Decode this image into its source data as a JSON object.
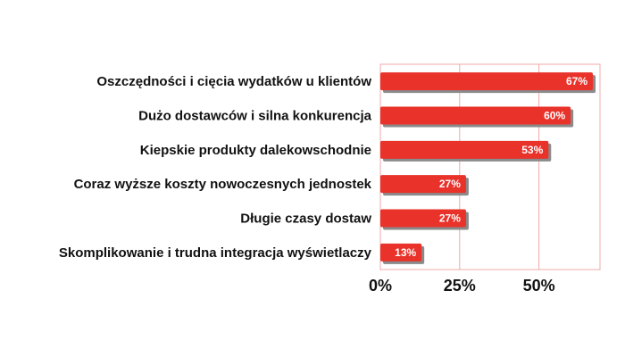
{
  "chart_data": {
    "type": "bar",
    "orientation": "horizontal",
    "categories": [
      "Oszczędności i cięcia wydatków u klientów",
      "Dużo dostawców i silna konkurencja",
      "Kiepskie produkty dalekowschodnie",
      "Coraz wyższe koszty nowoczesnych jednostek",
      "Długie czasy dostaw",
      "Skomplikowanie i trudna integracja wyświetlaczy"
    ],
    "values": [
      67,
      60,
      53,
      27,
      27,
      13
    ],
    "value_labels": [
      "67%",
      "60%",
      "53%",
      "27%",
      "27%",
      "13%"
    ],
    "xticks": [
      0,
      25,
      50
    ],
    "xtick_labels": [
      "0%",
      "25%",
      "50%"
    ],
    "xlim": [
      0,
      67
    ],
    "grid": true,
    "colors": {
      "bar": "#e8322a",
      "bar_shadow": "#8a8a8a",
      "grid": "#f0a8a8",
      "plot_border": "#f0a8a8"
    }
  }
}
